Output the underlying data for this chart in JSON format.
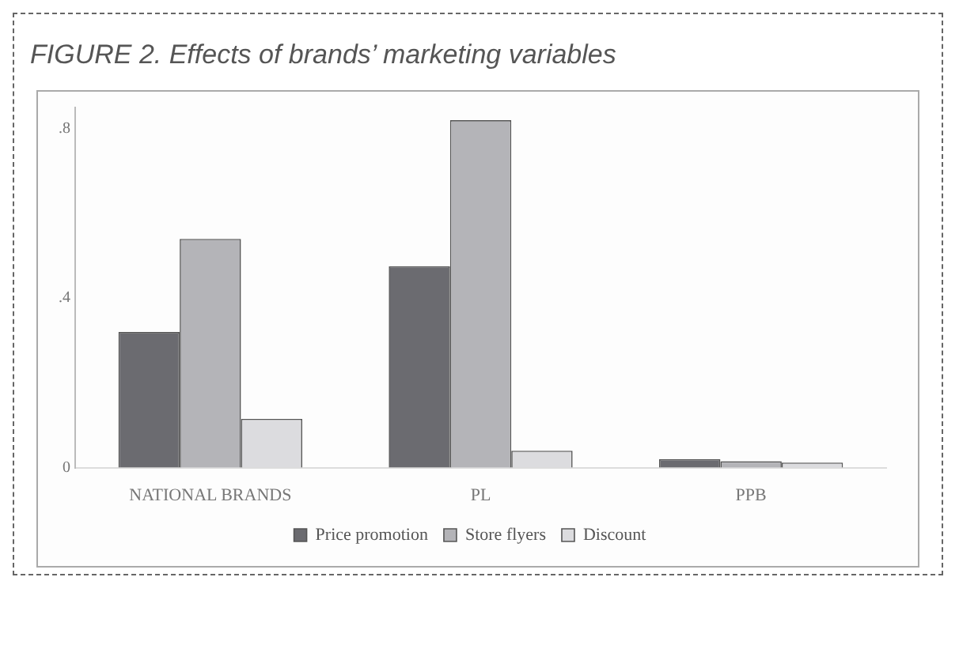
{
  "chart_data": {
    "type": "bar",
    "title": "FIGURE 2. Effects of brands’ marketing variables",
    "categories": [
      "NATIONAL BRANDS",
      "PL",
      "PPB"
    ],
    "series": [
      {
        "name": "Price promotion",
        "color": "#6b6b70",
        "values": [
          0.32,
          0.475,
          0.02
        ]
      },
      {
        "name": "Store flyers",
        "color": "#b4b4b8",
        "values": [
          0.54,
          0.82,
          0.015
        ]
      },
      {
        "name": "Discount",
        "color": "#dcdcdf",
        "values": [
          0.115,
          0.04,
          0.012
        ]
      }
    ],
    "ylim": [
      0,
      0.85
    ],
    "yticks": [
      0,
      {
        "value": 0.4,
        "label": ".4"
      },
      {
        "value": 0.8,
        "label": ".8"
      }
    ],
    "grid": false,
    "legend": "bottom"
  }
}
